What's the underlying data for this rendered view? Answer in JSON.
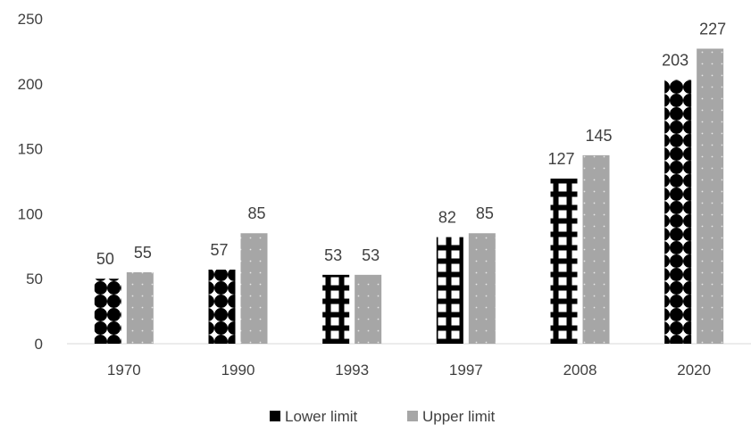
{
  "chart_data": {
    "type": "bar",
    "categories": [
      "1970",
      "1990",
      "1993",
      "1997",
      "2008",
      "2020"
    ],
    "series": [
      {
        "name": "Lower limit",
        "values": [
          50,
          57,
          53,
          82,
          127,
          203
        ],
        "color": "#000000",
        "pattern": "black-white-pattern"
      },
      {
        "name": "Upper limit",
        "values": [
          55,
          85,
          53,
          85,
          145,
          227
        ],
        "color": "#a6a6a6",
        "pattern": "gray-dotted"
      }
    ],
    "data_labels": {
      "Lower limit": [
        "50",
        "57",
        "53",
        "82",
        "127",
        "203"
      ],
      "Upper limit": [
        "55",
        "85",
        "53",
        "85",
        "145",
        "227"
      ]
    },
    "y_ticks": [
      "0",
      "50",
      "100",
      "150",
      "200",
      "250"
    ],
    "ylim": [
      0,
      250
    ],
    "grid": false,
    "legend_position": "bottom",
    "title": "",
    "xlabel": "",
    "ylabel": ""
  }
}
